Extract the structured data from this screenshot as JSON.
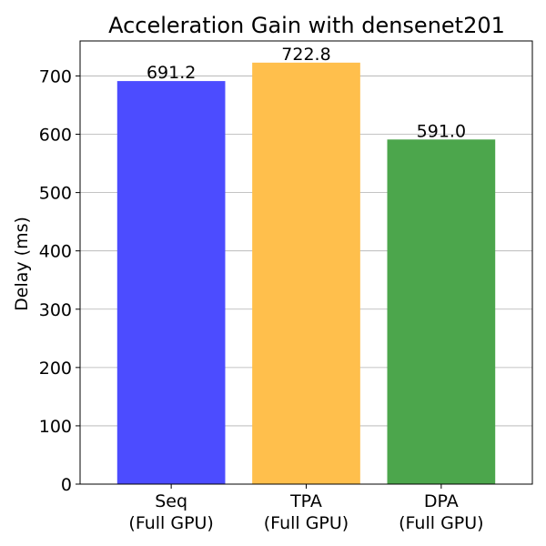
{
  "chart_data": {
    "type": "bar",
    "title": "Acceleration Gain with densenet201",
    "ylabel": "Delay (ms)",
    "xlabel": "",
    "ylim": [
      0,
      760
    ],
    "yticks": [
      0,
      100,
      200,
      300,
      400,
      500,
      600,
      700
    ],
    "grid": "y",
    "categories": [
      [
        "Seq",
        "(Full GPU)"
      ],
      [
        "TPA",
        "(Full GPU)"
      ],
      [
        "DPA",
        "(Full GPU)"
      ]
    ],
    "values": [
      691.2,
      722.8,
      591.0
    ],
    "data_labels": [
      "691.2",
      "722.8",
      "591.0"
    ],
    "colors": [
      "#4c4cff",
      "#ffbf4c",
      "#4ca64c"
    ]
  }
}
